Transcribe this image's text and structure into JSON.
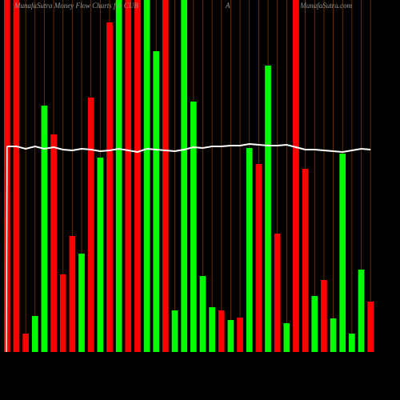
{
  "chart_data": {
    "type": "bar",
    "title": "MunafaSutra  Money Flow  Charts for CUB",
    "subtitle": "A",
    "source": "MunafaSutra.com",
    "ylim": [
      0,
      440
    ],
    "values": [
      440,
      440,
      23,
      45,
      308,
      272,
      97,
      145,
      123,
      318,
      243,
      412,
      440,
      440,
      440,
      440,
      376,
      440,
      52,
      440,
      313,
      95,
      56,
      52,
      40,
      43,
      255,
      235,
      358,
      148,
      36,
      440,
      229,
      70,
      90,
      42,
      248,
      23,
      103,
      63
    ],
    "colors": [
      "#ff0000",
      "#ff0000",
      "#ff0000",
      "#00ff00",
      "#00ff00",
      "#ff0000",
      "#ff0000",
      "#ff0000",
      "#00ff00",
      "#ff0000",
      "#00ff00",
      "#ff0000",
      "#00ff00",
      "#ff0000",
      "#ff0000",
      "#00ff00",
      "#00ff00",
      "#ff0000",
      "#00ff00",
      "#00ff00",
      "#00ff00",
      "#00ff00",
      "#00ff00",
      "#ff0000",
      "#00ff00",
      "#ff0000",
      "#00ff00",
      "#ff0000",
      "#00ff00",
      "#ff0000",
      "#00ff00",
      "#ff0000",
      "#ff0000",
      "#00ff00",
      "#ff0000",
      "#00ff00",
      "#00ff00",
      "#00ff00",
      "#00ff00",
      "#ff0000"
    ],
    "line": {
      "color": "#ffffff",
      "values": [
        257,
        257,
        254,
        257,
        254,
        256,
        253,
        252,
        254,
        253,
        251,
        252,
        254,
        252,
        250,
        254,
        253,
        252,
        251,
        253,
        256,
        255,
        257,
        257,
        258,
        258,
        260,
        259,
        258,
        258,
        259,
        256,
        253,
        253,
        252,
        251,
        250,
        252,
        254,
        253
      ]
    }
  }
}
